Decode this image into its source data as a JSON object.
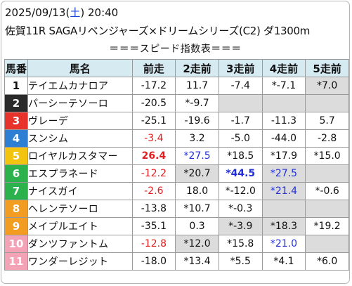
{
  "header": {
    "date": "2025/09/13",
    "day_open": "(",
    "day": "土",
    "day_close": ")",
    "time": "20:40",
    "race": "佐賀11R SAGAリベンジャーズ×ドリームシリーズ(C2) ダ1300m"
  },
  "section_title": "＝＝＝スピード指数表＝＝＝",
  "table": {
    "headers": [
      "馬番",
      "馬名",
      "前走",
      "2走前",
      "3走前",
      "4走前",
      "5走前"
    ],
    "rows": [
      {
        "num": "1",
        "bg": "#ffffff",
        "fg": "#111111",
        "name": "テイエムカナロア",
        "cells": [
          {
            "text": "-17.2"
          },
          {
            "text": "11.7"
          },
          {
            "text": "-7.4"
          },
          {
            "text": "*-7.1"
          },
          {
            "text": "*7.0",
            "shade": true
          }
        ]
      },
      {
        "num": "2",
        "bg": "#2a2a2a",
        "fg": "#ffffff",
        "name": "パーシーテソーロ",
        "cells": [
          {
            "text": "-20.5"
          },
          {
            "text": "*-9.7"
          },
          {
            "empty": true
          },
          {
            "empty": true
          },
          {
            "empty": true
          }
        ]
      },
      {
        "num": "3",
        "bg": "#e8332b",
        "fg": "#ffffff",
        "name": "ヴレーデ",
        "cells": [
          {
            "text": "-25.1"
          },
          {
            "text": "-19.6"
          },
          {
            "text": "-1.7"
          },
          {
            "text": "-11.3"
          },
          {
            "text": "5.7"
          }
        ]
      },
      {
        "num": "4",
        "bg": "#2d7fd3",
        "fg": "#ffffff",
        "name": "スンシム",
        "cells": [
          {
            "text": "-3.4",
            "color": "red"
          },
          {
            "text": "3.2"
          },
          {
            "text": "-5.0"
          },
          {
            "text": "-44.0"
          },
          {
            "text": "-2.8"
          }
        ]
      },
      {
        "num": "5",
        "bg": "#f2c40f",
        "fg": "#ffffff",
        "name": "ロイヤルカスタマー",
        "cells": [
          {
            "text": "26.4",
            "color": "red",
            "bold": true
          },
          {
            "text": "*27.5",
            "color": "blue"
          },
          {
            "text": "*18.5"
          },
          {
            "text": "*17.9"
          },
          {
            "text": "*15.0"
          }
        ]
      },
      {
        "num": "6",
        "bg": "#2bb24c",
        "fg": "#ffffff",
        "name": "エスプラネード",
        "cells": [
          {
            "text": "-12.2",
            "color": "red"
          },
          {
            "text": "*20.7",
            "shade": true
          },
          {
            "text": "*44.5",
            "color": "blue",
            "bold": true
          },
          {
            "text": "*27.5",
            "color": "blue",
            "shade": true
          },
          {
            "empty": true
          }
        ]
      },
      {
        "num": "7",
        "bg": "#2bb24c",
        "fg": "#ffffff",
        "name": "ナイスガイ",
        "cells": [
          {
            "text": "-2.6",
            "color": "red"
          },
          {
            "text": "18.0"
          },
          {
            "text": "*-12.0"
          },
          {
            "text": "*21.4",
            "color": "blue",
            "shade": true
          },
          {
            "text": "*-0.6"
          }
        ]
      },
      {
        "num": "8",
        "bg": "#f39c22",
        "fg": "#ffffff",
        "name": "ヘレンテソーロ",
        "cells": [
          {
            "text": "-13.8"
          },
          {
            "text": "*10.7"
          },
          {
            "text": "*-0.3"
          },
          {
            "empty": true
          },
          {
            "empty": true
          }
        ]
      },
      {
        "num": "9",
        "bg": "#f39c22",
        "fg": "#ffffff",
        "name": "メイプルエイト",
        "cells": [
          {
            "text": "-35.1"
          },
          {
            "text": "0.3"
          },
          {
            "text": "*-3.9",
            "shade": true
          },
          {
            "text": "*18.3",
            "shade": true
          },
          {
            "text": "*19.2"
          }
        ]
      },
      {
        "num": "10",
        "bg": "#f3a3b5",
        "fg": "#ffffff",
        "name": "ダンツファントム",
        "cells": [
          {
            "text": "-12.8",
            "color": "red"
          },
          {
            "text": "*12.0",
            "shade": true
          },
          {
            "text": "*15.8"
          },
          {
            "text": "*21.0",
            "color": "blue"
          },
          {
            "empty": true
          }
        ]
      },
      {
        "num": "11",
        "bg": "#f3a3b5",
        "fg": "#ffffff",
        "name": "ワンダーレジット",
        "cells": [
          {
            "text": "-18.0"
          },
          {
            "text": "*13.4"
          },
          {
            "text": "*5.5"
          },
          {
            "text": "*4.1"
          },
          {
            "text": "*6.0"
          }
        ]
      }
    ]
  }
}
